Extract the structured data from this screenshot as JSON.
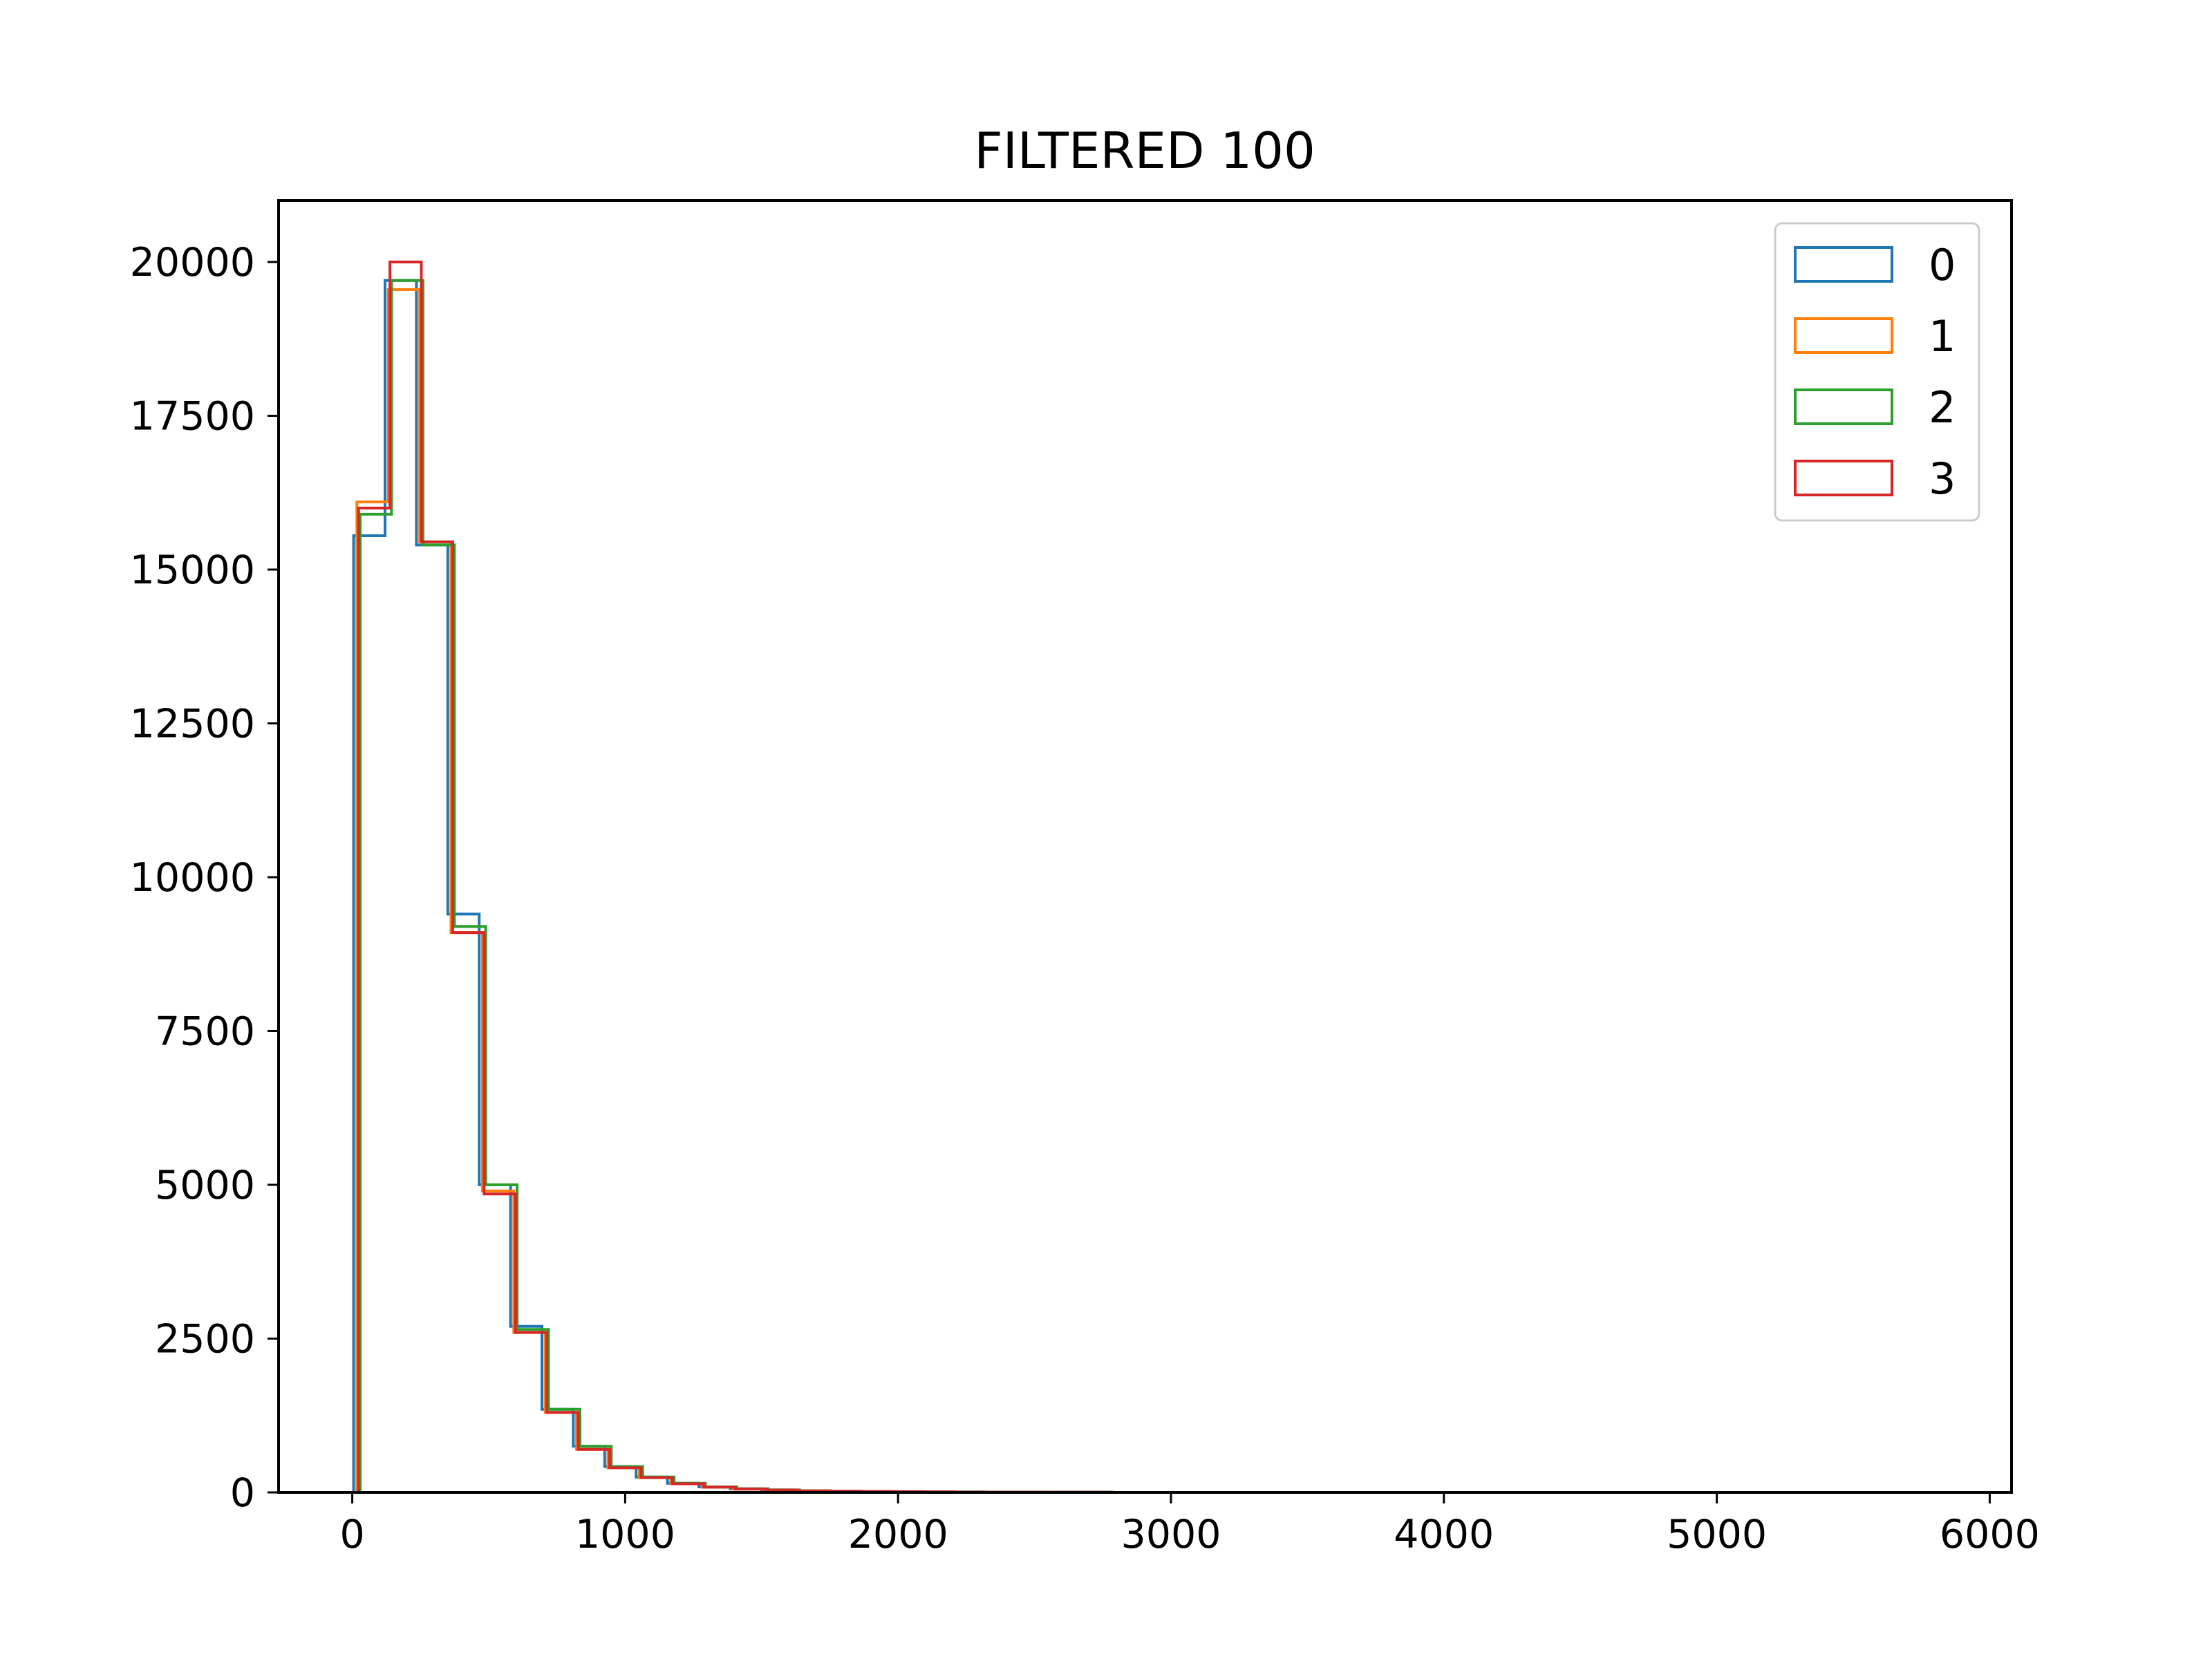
{
  "chart_data": {
    "type": "histogram-step",
    "title": "FILTERED 100",
    "xlabel": "",
    "ylabel": "",
    "xlim": [
      -270,
      6080
    ],
    "ylim": [
      0,
      21000
    ],
    "grid": false,
    "legend_position": "top-right",
    "x_ticks": [
      0,
      1000,
      2000,
      3000,
      4000,
      5000,
      6000
    ],
    "y_ticks": [
      0,
      2500,
      5000,
      7500,
      10000,
      12500,
      15000,
      17500,
      20000
    ],
    "bin_width": 115,
    "series": [
      {
        "name": "0",
        "color": "#1f77b4",
        "bin_start": 5,
        "values": [
          15550,
          19700,
          15400,
          9400,
          5000,
          2700,
          1350,
          750,
          420,
          250,
          150,
          90,
          60,
          40,
          28,
          20,
          15,
          12,
          9,
          7,
          5,
          4,
          3,
          2,
          0
        ]
      },
      {
        "name": "1",
        "color": "#ff7f0e",
        "bin_start": 17,
        "values": [
          16100,
          19550,
          15450,
          9100,
          4900,
          2600,
          1300,
          700,
          400,
          240,
          140,
          85,
          55,
          38,
          26,
          19,
          14,
          11,
          8,
          6,
          5,
          4,
          3,
          2,
          0
        ]
      },
      {
        "name": "2",
        "color": "#2ca02c",
        "bin_start": 29,
        "values": [
          15900,
          19700,
          15400,
          9200,
          5000,
          2650,
          1350,
          750,
          420,
          250,
          150,
          90,
          58,
          40,
          27,
          20,
          15,
          12,
          9,
          7,
          5,
          4,
          3,
          2,
          0
        ]
      },
      {
        "name": "3",
        "color": "#d62728",
        "bin_start": 23,
        "values": [
          16000,
          20000,
          15450,
          9100,
          4850,
          2600,
          1300,
          700,
          400,
          240,
          140,
          85,
          55,
          38,
          26,
          19,
          14,
          11,
          8,
          6,
          5,
          4,
          3,
          2,
          0
        ]
      }
    ]
  }
}
